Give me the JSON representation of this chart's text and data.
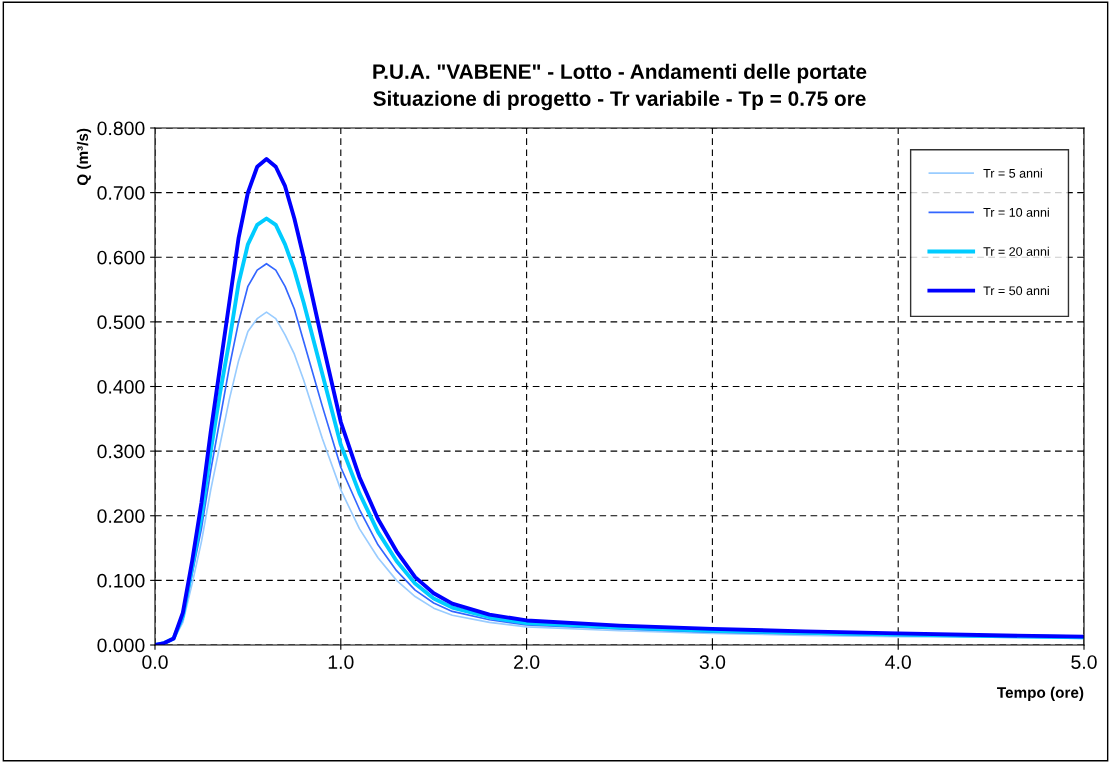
{
  "chart_data": {
    "type": "line",
    "title": "P.U.A. \"VABENE\" - Lotto - Andamenti delle portate\nSituazione di progetto - Tr variabile - Tp = 0.75 ore",
    "xlabel": "Tempo (ore)",
    "ylabel": "Q (m³/s)",
    "x": [
      0,
      0.05,
      0.1,
      0.15,
      0.2,
      0.25,
      0.3,
      0.35,
      0.4,
      0.45,
      0.5,
      0.55,
      0.6,
      0.65,
      0.7,
      0.75,
      0.8,
      0.9,
      1.0,
      1.1,
      1.2,
      1.3,
      1.4,
      1.5,
      1.6,
      1.8,
      2.0,
      2.5,
      3.0,
      3.5,
      4.0,
      4.5,
      5.0
    ],
    "series": [
      {
        "name": "Tr = 5 anni",
        "color": "#99ccff",
        "values": [
          0,
          0.002,
          0.008,
          0.035,
          0.095,
          0.16,
          0.24,
          0.31,
          0.38,
          0.44,
          0.485,
          0.505,
          0.515,
          0.505,
          0.48,
          0.45,
          0.41,
          0.32,
          0.24,
          0.18,
          0.135,
          0.1,
          0.075,
          0.057,
          0.046,
          0.035,
          0.028,
          0.022,
          0.018,
          0.015,
          0.013,
          0.012,
          0.01
        ]
      },
      {
        "name": "Tr = 10 anni",
        "color": "#3366ff",
        "values": [
          0,
          0.002,
          0.009,
          0.04,
          0.11,
          0.18,
          0.27,
          0.35,
          0.43,
          0.5,
          0.555,
          0.58,
          0.59,
          0.58,
          0.555,
          0.52,
          0.47,
          0.37,
          0.275,
          0.21,
          0.155,
          0.115,
          0.085,
          0.065,
          0.052,
          0.039,
          0.031,
          0.025,
          0.02,
          0.017,
          0.015,
          0.013,
          0.011
        ]
      },
      {
        "name": "Tr = 20 anni",
        "color": "#00ccff",
        "values": [
          0,
          0.003,
          0.01,
          0.045,
          0.12,
          0.2,
          0.3,
          0.39,
          0.47,
          0.56,
          0.62,
          0.65,
          0.66,
          0.65,
          0.62,
          0.58,
          0.53,
          0.42,
          0.31,
          0.235,
          0.175,
          0.13,
          0.095,
          0.072,
          0.058,
          0.043,
          0.034,
          0.027,
          0.022,
          0.019,
          0.016,
          0.014,
          0.012
        ]
      },
      {
        "name": "Tr = 50 anni",
        "color": "#0000ff",
        "values": [
          0,
          0.003,
          0.01,
          0.05,
          0.13,
          0.22,
          0.33,
          0.43,
          0.53,
          0.63,
          0.7,
          0.74,
          0.752,
          0.74,
          0.71,
          0.66,
          0.6,
          0.47,
          0.345,
          0.26,
          0.195,
          0.145,
          0.105,
          0.08,
          0.064,
          0.047,
          0.038,
          0.03,
          0.025,
          0.021,
          0.018,
          0.015,
          0.013
        ]
      }
    ],
    "xlim": [
      0,
      5
    ],
    "ylim": [
      0,
      0.8
    ],
    "xticks": [
      {
        "value": 0,
        "label": "0.0"
      },
      {
        "value": 1,
        "label": "1.0"
      },
      {
        "value": 2,
        "label": "2.0"
      },
      {
        "value": 3,
        "label": "3.0"
      },
      {
        "value": 4,
        "label": "4.0"
      },
      {
        "value": 5,
        "label": "5.0"
      }
    ],
    "yticks": [
      {
        "value": 0,
        "label": "0.000"
      },
      {
        "value": 0.1,
        "label": "0.100"
      },
      {
        "value": 0.2,
        "label": "0.200"
      },
      {
        "value": 0.3,
        "label": "0.300"
      },
      {
        "value": 0.4,
        "label": "0.400"
      },
      {
        "value": 0.5,
        "label": "0.500"
      },
      {
        "value": 0.6,
        "label": "0.600"
      },
      {
        "value": 0.7,
        "label": "0.700"
      },
      {
        "value": 0.8,
        "label": "0.800"
      }
    ],
    "grid": true,
    "legend": "top right",
    "line_style": "solid"
  }
}
